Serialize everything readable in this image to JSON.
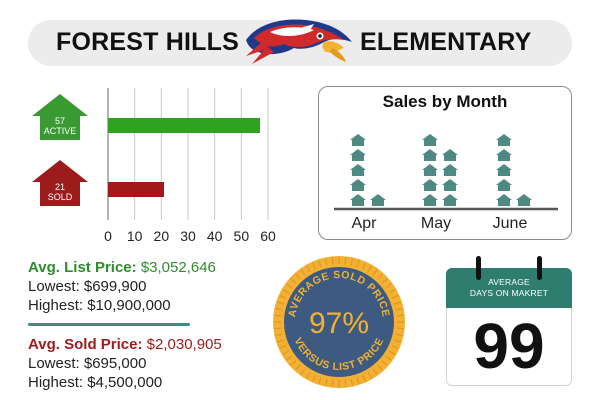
{
  "header": {
    "left_title": "FOREST HILLS",
    "right_title": "ELEMENTARY",
    "mascot": "hawk-mascot"
  },
  "badges": {
    "active": {
      "count": "57",
      "label": "ACTIVE",
      "color": "#3a9a32"
    },
    "sold": {
      "count": "21",
      "label": "SOLD",
      "color": "#9c1b1b"
    }
  },
  "stats": {
    "list": {
      "label": "Avg. List Price:",
      "value": "$3,052,646",
      "lowest": "Lowest: $699,900",
      "highest": "Highest: $10,900,000"
    },
    "sold": {
      "label": "Avg. Sold Price:",
      "value": "$2,030,905",
      "lowest": "Lowest: $695,000",
      "highest": "Highest: $4,500,000"
    }
  },
  "seal": {
    "value": "97%",
    "top_text": "AVERAGE SOLD PRICE",
    "bottom_text": "VERSUS LIST PRICE"
  },
  "calendar": {
    "line1": "AVERAGE",
    "line2": "DAYS ON MAKRET",
    "value": "99"
  },
  "colors": {
    "active": "#2ea31f",
    "sold": "#a31919",
    "house": "#4f8a82",
    "teal": "#2f7d6f",
    "seal_outer": "#f2b035",
    "seal_inner": "#3d5b80",
    "seal_text": "#f2b035"
  },
  "chart_data": [
    {
      "type": "bar",
      "orientation": "horizontal",
      "categories": [
        "ACTIVE",
        "SOLD"
      ],
      "values": [
        57,
        21
      ],
      "xlim": [
        0,
        60
      ],
      "xticks": [
        "0",
        "10",
        "20",
        "30",
        "40",
        "50",
        "60"
      ],
      "grid": true,
      "colors": [
        "#2ea31f",
        "#a31919"
      ]
    },
    {
      "type": "bar",
      "title": "Sales by Month",
      "categories": [
        "Apr",
        "May",
        "June"
      ],
      "series": [
        {
          "values": [
            5,
            5,
            5
          ]
        },
        {
          "values": [
            1,
            4,
            1
          ]
        }
      ],
      "unit": "house-icon",
      "grid": false
    }
  ]
}
